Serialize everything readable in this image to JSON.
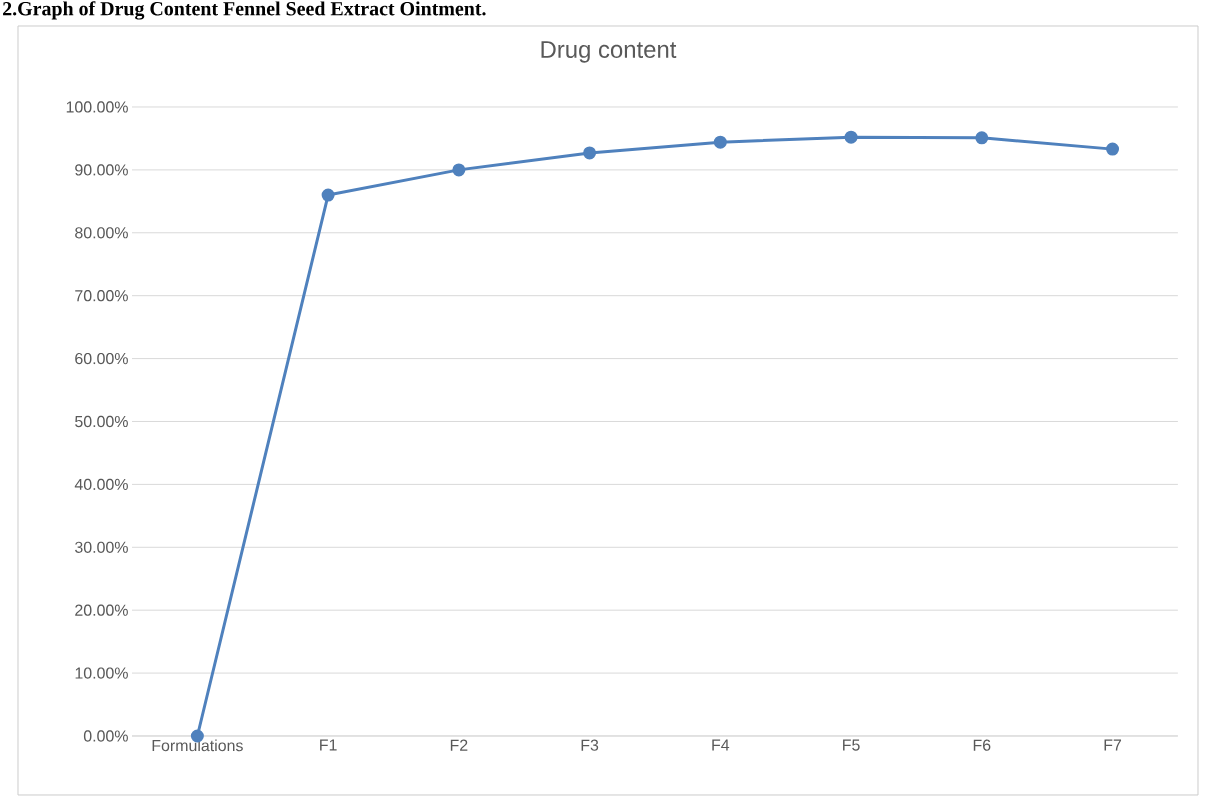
{
  "chart_data": {
    "type": "line",
    "title": "Drug content",
    "annotations": [
      "2.Graph of Drug Content Fennel Seed Extract Ointment."
    ],
    "categories": [
      "Formulations",
      "F1",
      "F2",
      "F3",
      "F4",
      "F5",
      "F6",
      "F7"
    ],
    "series": [
      {
        "color": "#4f81bd",
        "values": [
          0,
          86.0,
          90.0,
          92.7,
          94.4,
          95.2,
          95.1,
          93.3
        ]
      }
    ],
    "ylim": [
      0,
      100
    ],
    "yticks": [
      {
        "value": 0,
        "label": "0.00%"
      },
      {
        "value": 10,
        "label": "10.00%"
      },
      {
        "value": 20,
        "label": "20.00%"
      },
      {
        "value": 30,
        "label": "30.00%"
      },
      {
        "value": 40,
        "label": "40.00%"
      },
      {
        "value": 50,
        "label": "50.00%"
      },
      {
        "value": 60,
        "label": "60.00%"
      },
      {
        "value": 70,
        "label": "70.00%"
      },
      {
        "value": 80,
        "label": "80.00%"
      },
      {
        "value": 90,
        "label": "90.00%"
      },
      {
        "value": 100,
        "label": "100.00%"
      }
    ],
    "grid": "y",
    "marker": "circle"
  }
}
